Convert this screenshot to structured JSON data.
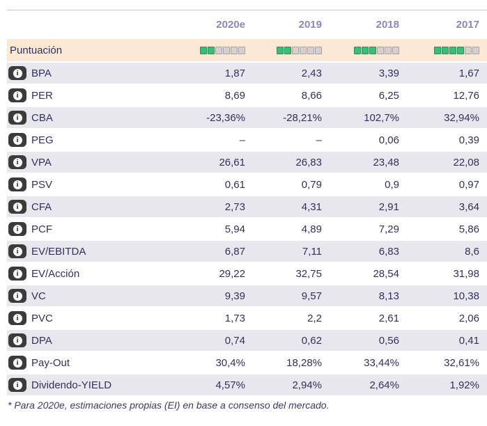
{
  "icons": {
    "info_glyph": "i"
  },
  "colors": {
    "header_year": "#8b86c3",
    "score_row_bg": "#fbe9d3",
    "alt_row_bg": "#e8e7ee",
    "text_navy": "#31305f",
    "rating_filled": "#3cbc76",
    "rating_empty": "#d6d0cb",
    "info_icon_bg": "#3b3b3b",
    "topline": "#cac6dd"
  },
  "table": {
    "columns": [
      "2020e",
      "2019",
      "2018",
      "2017"
    ],
    "score_label": "Puntuación",
    "rows": [
      {
        "label": "BPA",
        "values": [
          "1,87",
          "2,43",
          "3,39",
          "1,67"
        ]
      },
      {
        "label": "PER",
        "values": [
          "8,69",
          "8,66",
          "6,25",
          "12,76"
        ]
      },
      {
        "label": "CBA",
        "values": [
          "-23,36%",
          "-28,21%",
          "102,7%",
          "32,94%"
        ]
      },
      {
        "label": "PEG",
        "values": [
          "–",
          "–",
          "0,06",
          "0,39"
        ]
      },
      {
        "label": "VPA",
        "values": [
          "26,61",
          "26,83",
          "23,48",
          "22,08"
        ]
      },
      {
        "label": "PSV",
        "values": [
          "0,61",
          "0,79",
          "0,9",
          "0,97"
        ]
      },
      {
        "label": "CFA",
        "values": [
          "2,73",
          "4,31",
          "2,91",
          "3,64"
        ]
      },
      {
        "label": "PCF",
        "values": [
          "5,94",
          "4,89",
          "7,29",
          "5,86"
        ]
      },
      {
        "label": "EV/EBITDA",
        "values": [
          "6,87",
          "7,11",
          "6,83",
          "8,6"
        ]
      },
      {
        "label": "EV/Acción",
        "values": [
          "29,22",
          "32,75",
          "28,54",
          "31,98"
        ]
      },
      {
        "label": "VC",
        "values": [
          "9,39",
          "9,57",
          "8,13",
          "10,38"
        ]
      },
      {
        "label": "PVC",
        "values": [
          "1,73",
          "2,2",
          "2,61",
          "2,06"
        ]
      },
      {
        "label": "DPA",
        "values": [
          "0,74",
          "0,62",
          "0,56",
          "0,41"
        ]
      },
      {
        "label": "Pay-Out",
        "values": [
          "30,4%",
          "18,28%",
          "33,44%",
          "32,61%"
        ]
      },
      {
        "label": "Dividendo-YIELD",
        "values": [
          "4,57%",
          "2,94%",
          "2,64%",
          "1,92%"
        ]
      }
    ]
  },
  "puntuacion": {
    "ratings": [
      {
        "filled": 2,
        "total": 6
      },
      {
        "filled": 2,
        "total": 6
      },
      {
        "filled": 3,
        "total": 6
      },
      {
        "filled": 4,
        "total": 6
      }
    ]
  },
  "footnote": "* Para 2020e, estimaciones propias (EI) en base a consenso del mercado.",
  "chart_data": {
    "type": "table",
    "title": "Puntuación",
    "columns": [
      "2020e",
      "2019",
      "2018",
      "2017"
    ],
    "score_row": {
      "label": "Puntuación",
      "max": 6,
      "filled": [
        2,
        2,
        3,
        4
      ]
    },
    "rows": [
      {
        "metric": "BPA",
        "values": [
          "1,87",
          "2,43",
          "3,39",
          "1,67"
        ]
      },
      {
        "metric": "PER",
        "values": [
          "8,69",
          "8,66",
          "6,25",
          "12,76"
        ]
      },
      {
        "metric": "CBA",
        "values": [
          "-23,36%",
          "-28,21%",
          "102,7%",
          "32,94%"
        ]
      },
      {
        "metric": "PEG",
        "values": [
          "–",
          "–",
          "0,06",
          "0,39"
        ]
      },
      {
        "metric": "VPA",
        "values": [
          "26,61",
          "26,83",
          "23,48",
          "22,08"
        ]
      },
      {
        "metric": "PSV",
        "values": [
          "0,61",
          "0,79",
          "0,9",
          "0,97"
        ]
      },
      {
        "metric": "CFA",
        "values": [
          "2,73",
          "4,31",
          "2,91",
          "3,64"
        ]
      },
      {
        "metric": "PCF",
        "values": [
          "5,94",
          "4,89",
          "7,29",
          "5,86"
        ]
      },
      {
        "metric": "EV/EBITDA",
        "values": [
          "6,87",
          "7,11",
          "6,83",
          "8,6"
        ]
      },
      {
        "metric": "EV/Acción",
        "values": [
          "29,22",
          "32,75",
          "28,54",
          "31,98"
        ]
      },
      {
        "metric": "VC",
        "values": [
          "9,39",
          "9,57",
          "8,13",
          "10,38"
        ]
      },
      {
        "metric": "PVC",
        "values": [
          "1,73",
          "2,2",
          "2,61",
          "2,06"
        ]
      },
      {
        "metric": "DPA",
        "values": [
          "0,74",
          "0,62",
          "0,56",
          "0,41"
        ]
      },
      {
        "metric": "Pay-Out",
        "values": [
          "30,4%",
          "18,28%",
          "33,44%",
          "32,61%"
        ]
      },
      {
        "metric": "Dividendo-YIELD",
        "values": [
          "4,57%",
          "2,94%",
          "2,64%",
          "1,92%"
        ]
      }
    ],
    "footnote": "* Para 2020e, estimaciones propias (EI) en base a consenso del mercado."
  }
}
